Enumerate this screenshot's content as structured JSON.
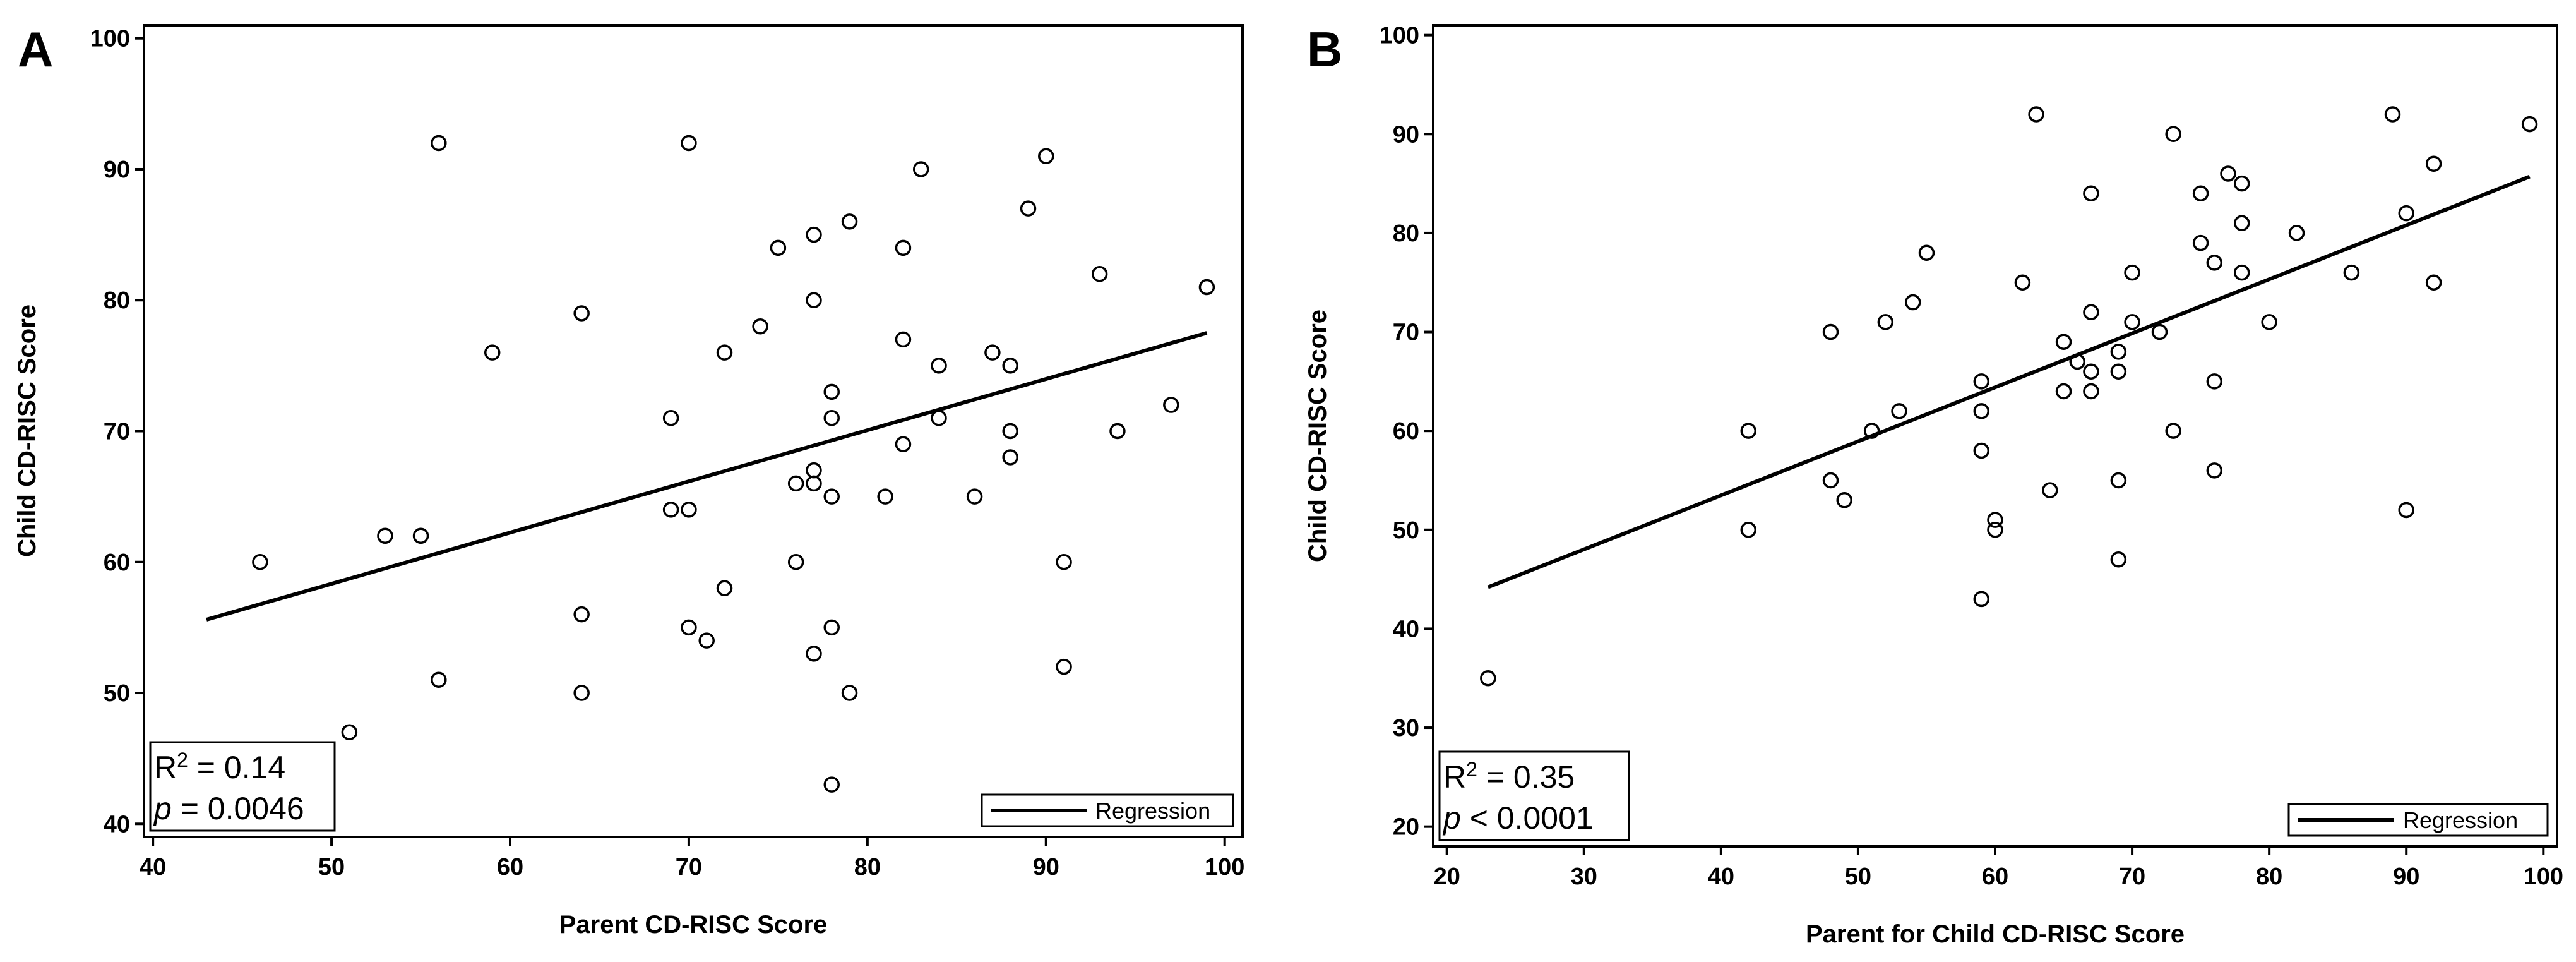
{
  "chart_data": [
    {
      "panel": "A",
      "type": "scatter",
      "xlabel": "Parent CD-RISC Score",
      "ylabel": "Child CD-RISC Score",
      "xlim": [
        39.5,
        101
      ],
      "ylim": [
        39,
        101
      ],
      "xticks": [
        40,
        50,
        60,
        70,
        80,
        90,
        100
      ],
      "yticks": [
        40,
        50,
        60,
        70,
        80,
        90,
        100
      ],
      "points": [
        [
          46,
          60
        ],
        [
          51,
          47
        ],
        [
          53,
          62
        ],
        [
          55,
          62
        ],
        [
          56,
          92
        ],
        [
          56,
          51
        ],
        [
          59,
          76
        ],
        [
          64,
          79
        ],
        [
          64,
          56
        ],
        [
          64,
          50
        ],
        [
          69,
          71
        ],
        [
          69,
          64
        ],
        [
          70,
          92
        ],
        [
          70,
          64
        ],
        [
          70,
          55
        ],
        [
          71,
          54
        ],
        [
          72,
          76
        ],
        [
          72,
          58
        ],
        [
          74,
          78
        ],
        [
          75,
          84
        ],
        [
          76,
          66
        ],
        [
          76,
          60
        ],
        [
          77,
          85
        ],
        [
          77,
          80
        ],
        [
          77,
          67
        ],
        [
          77,
          66
        ],
        [
          77,
          53
        ],
        [
          78,
          73
        ],
        [
          78,
          71
        ],
        [
          78,
          65
        ],
        [
          78,
          55
        ],
        [
          78,
          43
        ],
        [
          79,
          86
        ],
        [
          79,
          50
        ],
        [
          81,
          65
        ],
        [
          82,
          84
        ],
        [
          82,
          77
        ],
        [
          82,
          69
        ],
        [
          83,
          90
        ],
        [
          84,
          75
        ],
        [
          84,
          71
        ],
        [
          86,
          65
        ],
        [
          87,
          76
        ],
        [
          88,
          75
        ],
        [
          88,
          70
        ],
        [
          88,
          68
        ],
        [
          89,
          87
        ],
        [
          90,
          91
        ],
        [
          91,
          60
        ],
        [
          91,
          52
        ],
        [
          93,
          82
        ],
        [
          94,
          70
        ],
        [
          97,
          72
        ],
        [
          99,
          81
        ]
      ],
      "regression": {
        "x": [
          43,
          99
        ],
        "y": [
          55.6,
          77.5
        ]
      },
      "stats": {
        "r_label": "R",
        "r_sup": "2",
        "r_value": " = 0.14",
        "p_label": "p",
        "p_value": " = 0.0046"
      },
      "legend": {
        "label": "Regression",
        "position": "bottom-right"
      }
    },
    {
      "panel": "B",
      "type": "scatter",
      "xlabel": "Parent for Child CD-RISC Score",
      "ylabel": "Child CD-RISC Score",
      "xlim": [
        19,
        101
      ],
      "ylim": [
        18,
        101
      ],
      "xticks": [
        20,
        30,
        40,
        50,
        60,
        70,
        80,
        90,
        100
      ],
      "yticks": [
        20,
        30,
        40,
        50,
        60,
        70,
        80,
        90,
        100
      ],
      "points": [
        [
          23,
          35
        ],
        [
          42,
          60
        ],
        [
          42,
          50
        ],
        [
          48,
          70
        ],
        [
          48,
          55
        ],
        [
          49,
          53
        ],
        [
          51,
          60
        ],
        [
          52,
          71
        ],
        [
          53,
          62
        ],
        [
          54,
          73
        ],
        [
          55,
          78
        ],
        [
          59,
          65
        ],
        [
          59,
          62
        ],
        [
          59,
          58
        ],
        [
          59,
          43
        ],
        [
          60,
          51
        ],
        [
          60,
          50
        ],
        [
          62,
          75
        ],
        [
          63,
          92
        ],
        [
          64,
          54
        ],
        [
          65,
          69
        ],
        [
          65,
          64
        ],
        [
          66,
          67
        ],
        [
          67,
          84
        ],
        [
          67,
          72
        ],
        [
          67,
          66
        ],
        [
          67,
          64
        ],
        [
          69,
          68
        ],
        [
          69,
          66
        ],
        [
          69,
          55
        ],
        [
          69,
          47
        ],
        [
          70,
          76
        ],
        [
          70,
          71
        ],
        [
          72,
          70
        ],
        [
          73,
          90
        ],
        [
          73,
          60
        ],
        [
          75,
          84
        ],
        [
          75,
          79
        ],
        [
          76,
          77
        ],
        [
          76,
          65
        ],
        [
          76,
          56
        ],
        [
          77,
          86
        ],
        [
          78,
          85
        ],
        [
          78,
          81
        ],
        [
          78,
          76
        ],
        [
          80,
          71
        ],
        [
          82,
          80
        ],
        [
          86,
          76
        ],
        [
          89,
          92
        ],
        [
          90,
          82
        ],
        [
          90,
          52
        ],
        [
          92,
          87
        ],
        [
          92,
          75
        ],
        [
          99,
          91
        ]
      ],
      "regression": {
        "x": [
          23,
          99
        ],
        "y": [
          44.2,
          85.7
        ]
      },
      "stats": {
        "r_label": "R",
        "r_sup": "2",
        "r_value": " = 0.35",
        "p_label": "p",
        "p_value": " < 0.0001"
      },
      "legend": {
        "label": "Regression",
        "position": "bottom-right"
      }
    }
  ]
}
